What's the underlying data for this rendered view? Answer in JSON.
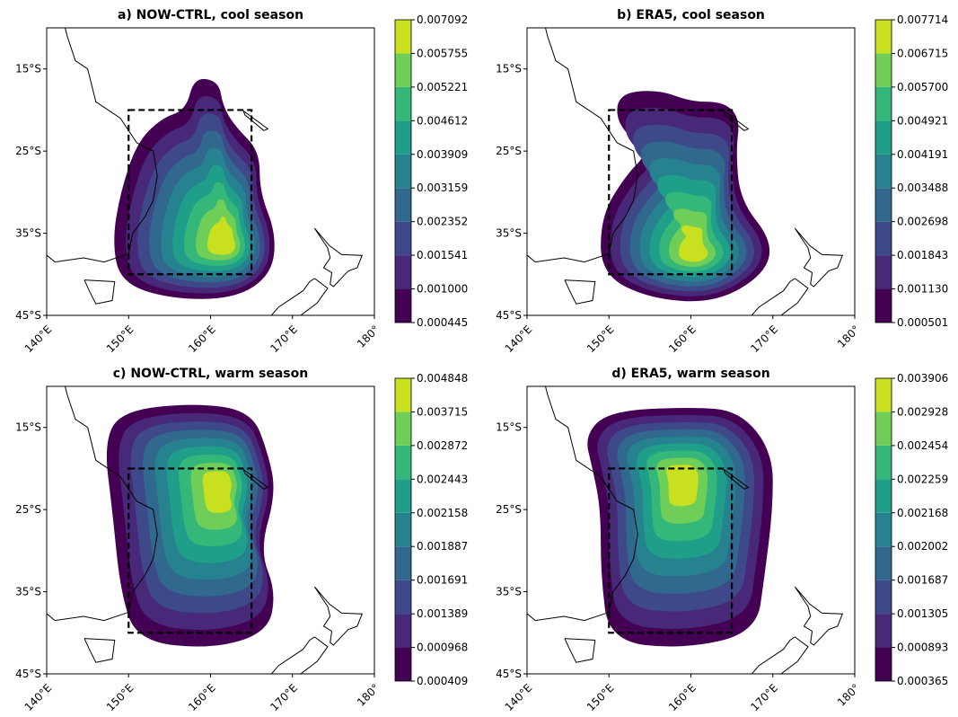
{
  "chart_data": [
    {
      "type": "contour-map",
      "title": "a) NOW-CTRL, cool season",
      "xlim": [
        140,
        180
      ],
      "ylim": [
        -45,
        -10
      ],
      "xticks": [
        {
          "value": 140,
          "label": "140°E"
        },
        {
          "value": 150,
          "label": "150°E"
        },
        {
          "value": 160,
          "label": "160°E"
        },
        {
          "value": 170,
          "label": "170°E"
        },
        {
          "value": 180,
          "label": "180°"
        }
      ],
      "yticks": [
        {
          "value": -45,
          "label": "45°S"
        },
        {
          "value": -35,
          "label": "35°S"
        },
        {
          "value": -25,
          "label": "25°S"
        },
        {
          "value": -15,
          "label": "15°S"
        }
      ],
      "box_lon": [
        150,
        165
      ],
      "box_lat": [
        -40,
        -20
      ],
      "colors": [
        "#440154",
        "#482878",
        "#3e4989",
        "#31688e",
        "#26828e",
        "#1f9e89",
        "#35b779",
        "#6ece58",
        "#c8e020"
      ],
      "levels": [
        0.000445,
        {
          "value": 0.001,
          "label": "0.001000"
        },
        0.001541,
        0.002352,
        0.003159,
        0.003909,
        0.004612,
        0.005221,
        0.005755,
        0.007092
      ]
    },
    {
      "type": "contour-map",
      "title": "b) ERA5, cool season",
      "xlim": [
        140,
        180
      ],
      "ylim": [
        -45,
        -10
      ],
      "xticks": [
        {
          "value": 140,
          "label": "140°E"
        },
        {
          "value": 150,
          "label": "150°E"
        },
        {
          "value": 160,
          "label": "160°E"
        },
        {
          "value": 170,
          "label": "170°E"
        },
        {
          "value": 180,
          "label": "180°"
        }
      ],
      "yticks": [
        {
          "value": -45,
          "label": "45°S"
        },
        {
          "value": -35,
          "label": "35°S"
        },
        {
          "value": -25,
          "label": "25°S"
        },
        {
          "value": -15,
          "label": "15°S"
        }
      ],
      "box_lon": [
        150,
        165
      ],
      "box_lat": [
        -40,
        -20
      ],
      "colors": [
        "#440154",
        "#482878",
        "#3e4989",
        "#31688e",
        "#26828e",
        "#1f9e89",
        "#35b779",
        "#6ece58",
        "#c8e020"
      ],
      "levels": [
        0.000501,
        {
          "value": 0.00113,
          "label": "0.001130"
        },
        0.001843,
        0.002698,
        0.003488,
        0.004191,
        0.004921,
        {
          "value": 0.0057,
          "label": "0.005700"
        },
        0.006715,
        0.007714
      ]
    },
    {
      "type": "contour-map",
      "title": "c) NOW-CTRL, warm season",
      "xlim": [
        140,
        180
      ],
      "ylim": [
        -45,
        -10
      ],
      "xticks": [
        {
          "value": 140,
          "label": "140°E"
        },
        {
          "value": 150,
          "label": "150°E"
        },
        {
          "value": 160,
          "label": "160°E"
        },
        {
          "value": 170,
          "label": "170°E"
        },
        {
          "value": 180,
          "label": "180°"
        }
      ],
      "yticks": [
        {
          "value": -45,
          "label": "45°S"
        },
        {
          "value": -35,
          "label": "35°S"
        },
        {
          "value": -25,
          "label": "25°S"
        },
        {
          "value": -15,
          "label": "15°S"
        }
      ],
      "box_lon": [
        150,
        165
      ],
      "box_lat": [
        -40,
        -20
      ],
      "colors": [
        "#440154",
        "#482878",
        "#3e4989",
        "#31688e",
        "#26828e",
        "#1f9e89",
        "#35b779",
        "#6ece58",
        "#c8e020"
      ],
      "levels": [
        0.000409,
        0.000968,
        0.001389,
        0.001691,
        0.001887,
        0.002158,
        0.002443,
        0.002872,
        0.003715,
        0.004848
      ]
    },
    {
      "type": "contour-map",
      "title": "d) ERA5, warm season",
      "xlim": [
        140,
        180
      ],
      "ylim": [
        -45,
        -10
      ],
      "xticks": [
        {
          "value": 140,
          "label": "140°E"
        },
        {
          "value": 150,
          "label": "150°E"
        },
        {
          "value": 160,
          "label": "160°E"
        },
        {
          "value": 170,
          "label": "170°E"
        },
        {
          "value": 180,
          "label": "180°"
        }
      ],
      "yticks": [
        {
          "value": -45,
          "label": "45°S"
        },
        {
          "value": -35,
          "label": "35°S"
        },
        {
          "value": -25,
          "label": "25°S"
        },
        {
          "value": -15,
          "label": "15°S"
        }
      ],
      "box_lon": [
        150,
        165
      ],
      "box_lat": [
        -40,
        -20
      ],
      "colors": [
        "#440154",
        "#482878",
        "#3e4989",
        "#31688e",
        "#26828e",
        "#1f9e89",
        "#35b779",
        "#6ece58",
        "#c8e020"
      ],
      "levels": [
        0.000365,
        0.000893,
        0.001305,
        0.001687,
        0.002002,
        0.002168,
        0.002259,
        0.002454,
        0.002928,
        0.003906
      ]
    }
  ]
}
